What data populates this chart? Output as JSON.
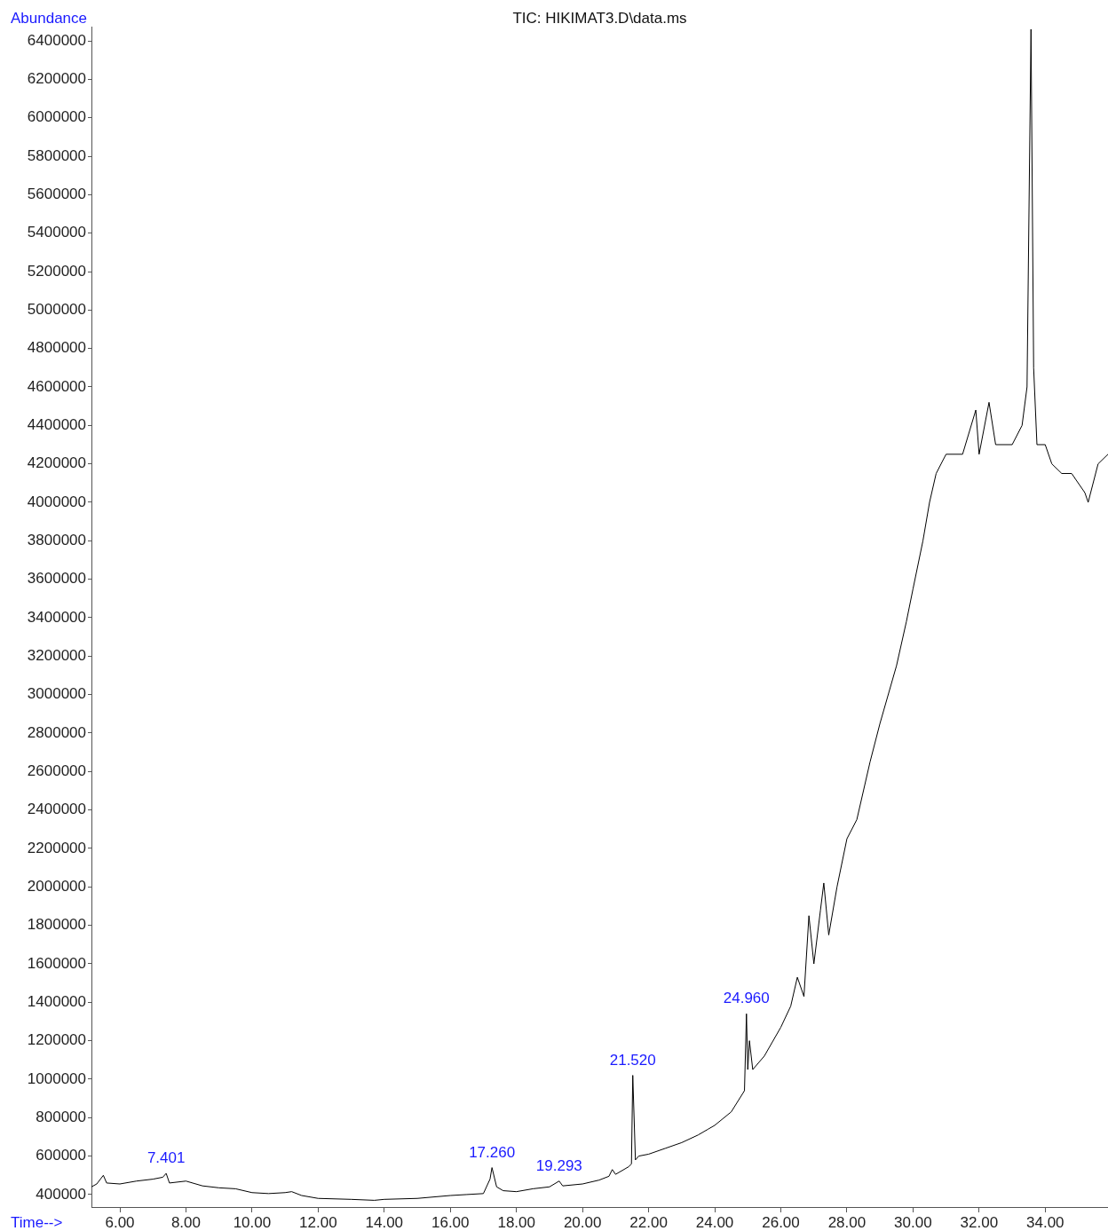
{
  "chart_data": {
    "type": "line",
    "title": "TIC: HIKIMAT3.D\\data.ms",
    "xlabel": "Time-->",
    "ylabel": "Abundance",
    "x": [
      5.14,
      5.3,
      5.5,
      5.6,
      6,
      6.5,
      7,
      7.3,
      7.401,
      7.5,
      8,
      8.5,
      9,
      9.5,
      10,
      10.5,
      11,
      11.2,
      11.5,
      12,
      13,
      13.7,
      14,
      15,
      16,
      16.5,
      17,
      17.2,
      17.26,
      17.4,
      17.6,
      18,
      18.5,
      19,
      19.293,
      19.4,
      20,
      20.5,
      20.8,
      20.9,
      21,
      21.4,
      21.48,
      21.52,
      21.6,
      21.7,
      22,
      22.5,
      23,
      23.5,
      23.8,
      24,
      24.5,
      24.9,
      24.96,
      25,
      25.05,
      25.15,
      25.5,
      26,
      26.3,
      26.5,
      26.7,
      26.85,
      27,
      27.2,
      27.3,
      27.45,
      27.7,
      28,
      28.3,
      28.7,
      29,
      29.5,
      29.8,
      30,
      30.3,
      30.5,
      30.7,
      31,
      31.5,
      31.9,
      32,
      32.3,
      32.5,
      33,
      33.3,
      33.45,
      33.57,
      33.65,
      33.75,
      34,
      34.2,
      34.5,
      34.8,
      35.2,
      35.3,
      35.6,
      35.9
    ],
    "series": [
      {
        "color": "#000000",
        "values": [
          440000,
          455000,
          500000,
          460000,
          455000,
          470000,
          480000,
          490000,
          510000,
          460000,
          470000,
          445000,
          435000,
          430000,
          410000,
          405000,
          410000,
          415000,
          395000,
          380000,
          375000,
          370000,
          375000,
          380000,
          395000,
          400000,
          405000,
          480000,
          540000,
          440000,
          420000,
          415000,
          430000,
          440000,
          470000,
          445000,
          455000,
          475000,
          495000,
          530000,
          505000,
          545000,
          560000,
          1020000,
          580000,
          600000,
          610000,
          640000,
          670000,
          710000,
          740000,
          760000,
          830000,
          940000,
          1340000,
          1050000,
          1200000,
          1050000,
          1120000,
          1270000,
          1380000,
          1530000,
          1430000,
          1850000,
          1600000,
          1880000,
          2020000,
          1750000,
          2000000,
          2250000,
          2350000,
          2650000,
          2850000,
          3150000,
          3380000,
          3550000,
          3800000,
          4000000,
          4150000,
          4250000,
          4250000,
          4480000,
          4250000,
          4520000,
          4300000,
          4300000,
          4400000,
          4600000,
          6460000,
          4700000,
          4300000,
          4300000,
          4200000,
          4150000,
          4150000,
          4050000,
          4000000,
          4200000,
          4250000
        ]
      }
    ],
    "xlim": [
      5.14,
      35.9
    ],
    "ylim": [
      335000,
      6474000
    ],
    "xticks": [
      {
        "value": 6,
        "label": "6.00"
      },
      {
        "value": 8,
        "label": "8.00"
      },
      {
        "value": 10,
        "label": "10.00"
      },
      {
        "value": 12,
        "label": "12.00"
      },
      {
        "value": 14,
        "label": "14.00"
      },
      {
        "value": 16,
        "label": "16.00"
      },
      {
        "value": 18,
        "label": "18.00"
      },
      {
        "value": 20,
        "label": "20.00"
      },
      {
        "value": 22,
        "label": "22.00"
      },
      {
        "value": 24,
        "label": "24.00"
      },
      {
        "value": 26,
        "label": "26.00"
      },
      {
        "value": 28,
        "label": "28.00"
      },
      {
        "value": 30,
        "label": "30.00"
      },
      {
        "value": 32,
        "label": "32.00"
      },
      {
        "value": 34,
        "label": "34.00"
      }
    ],
    "yticks": [
      400000,
      600000,
      800000,
      1000000,
      1200000,
      1400000,
      1600000,
      1800000,
      2000000,
      2200000,
      2400000,
      2600000,
      2800000,
      3000000,
      3200000,
      3400000,
      3600000,
      3800000,
      4000000,
      4200000,
      4400000,
      4600000,
      4800000,
      5000000,
      5200000,
      5400000,
      5600000,
      5800000,
      6000000,
      6200000,
      6400000
    ],
    "annotations": [
      {
        "text": "7.401",
        "x": 7.401,
        "y": 510000
      },
      {
        "text": "17.260",
        "x": 17.26,
        "y": 540000
      },
      {
        "text": "19.293",
        "x": 19.293,
        "y": 470000
      },
      {
        "text": "21.520",
        "x": 21.52,
        "y": 1020000
      },
      {
        "text": "24.960",
        "x": 24.96,
        "y": 1340000
      }
    ],
    "grid": false,
    "legend": false,
    "marker": "none",
    "line_style": "solid"
  }
}
